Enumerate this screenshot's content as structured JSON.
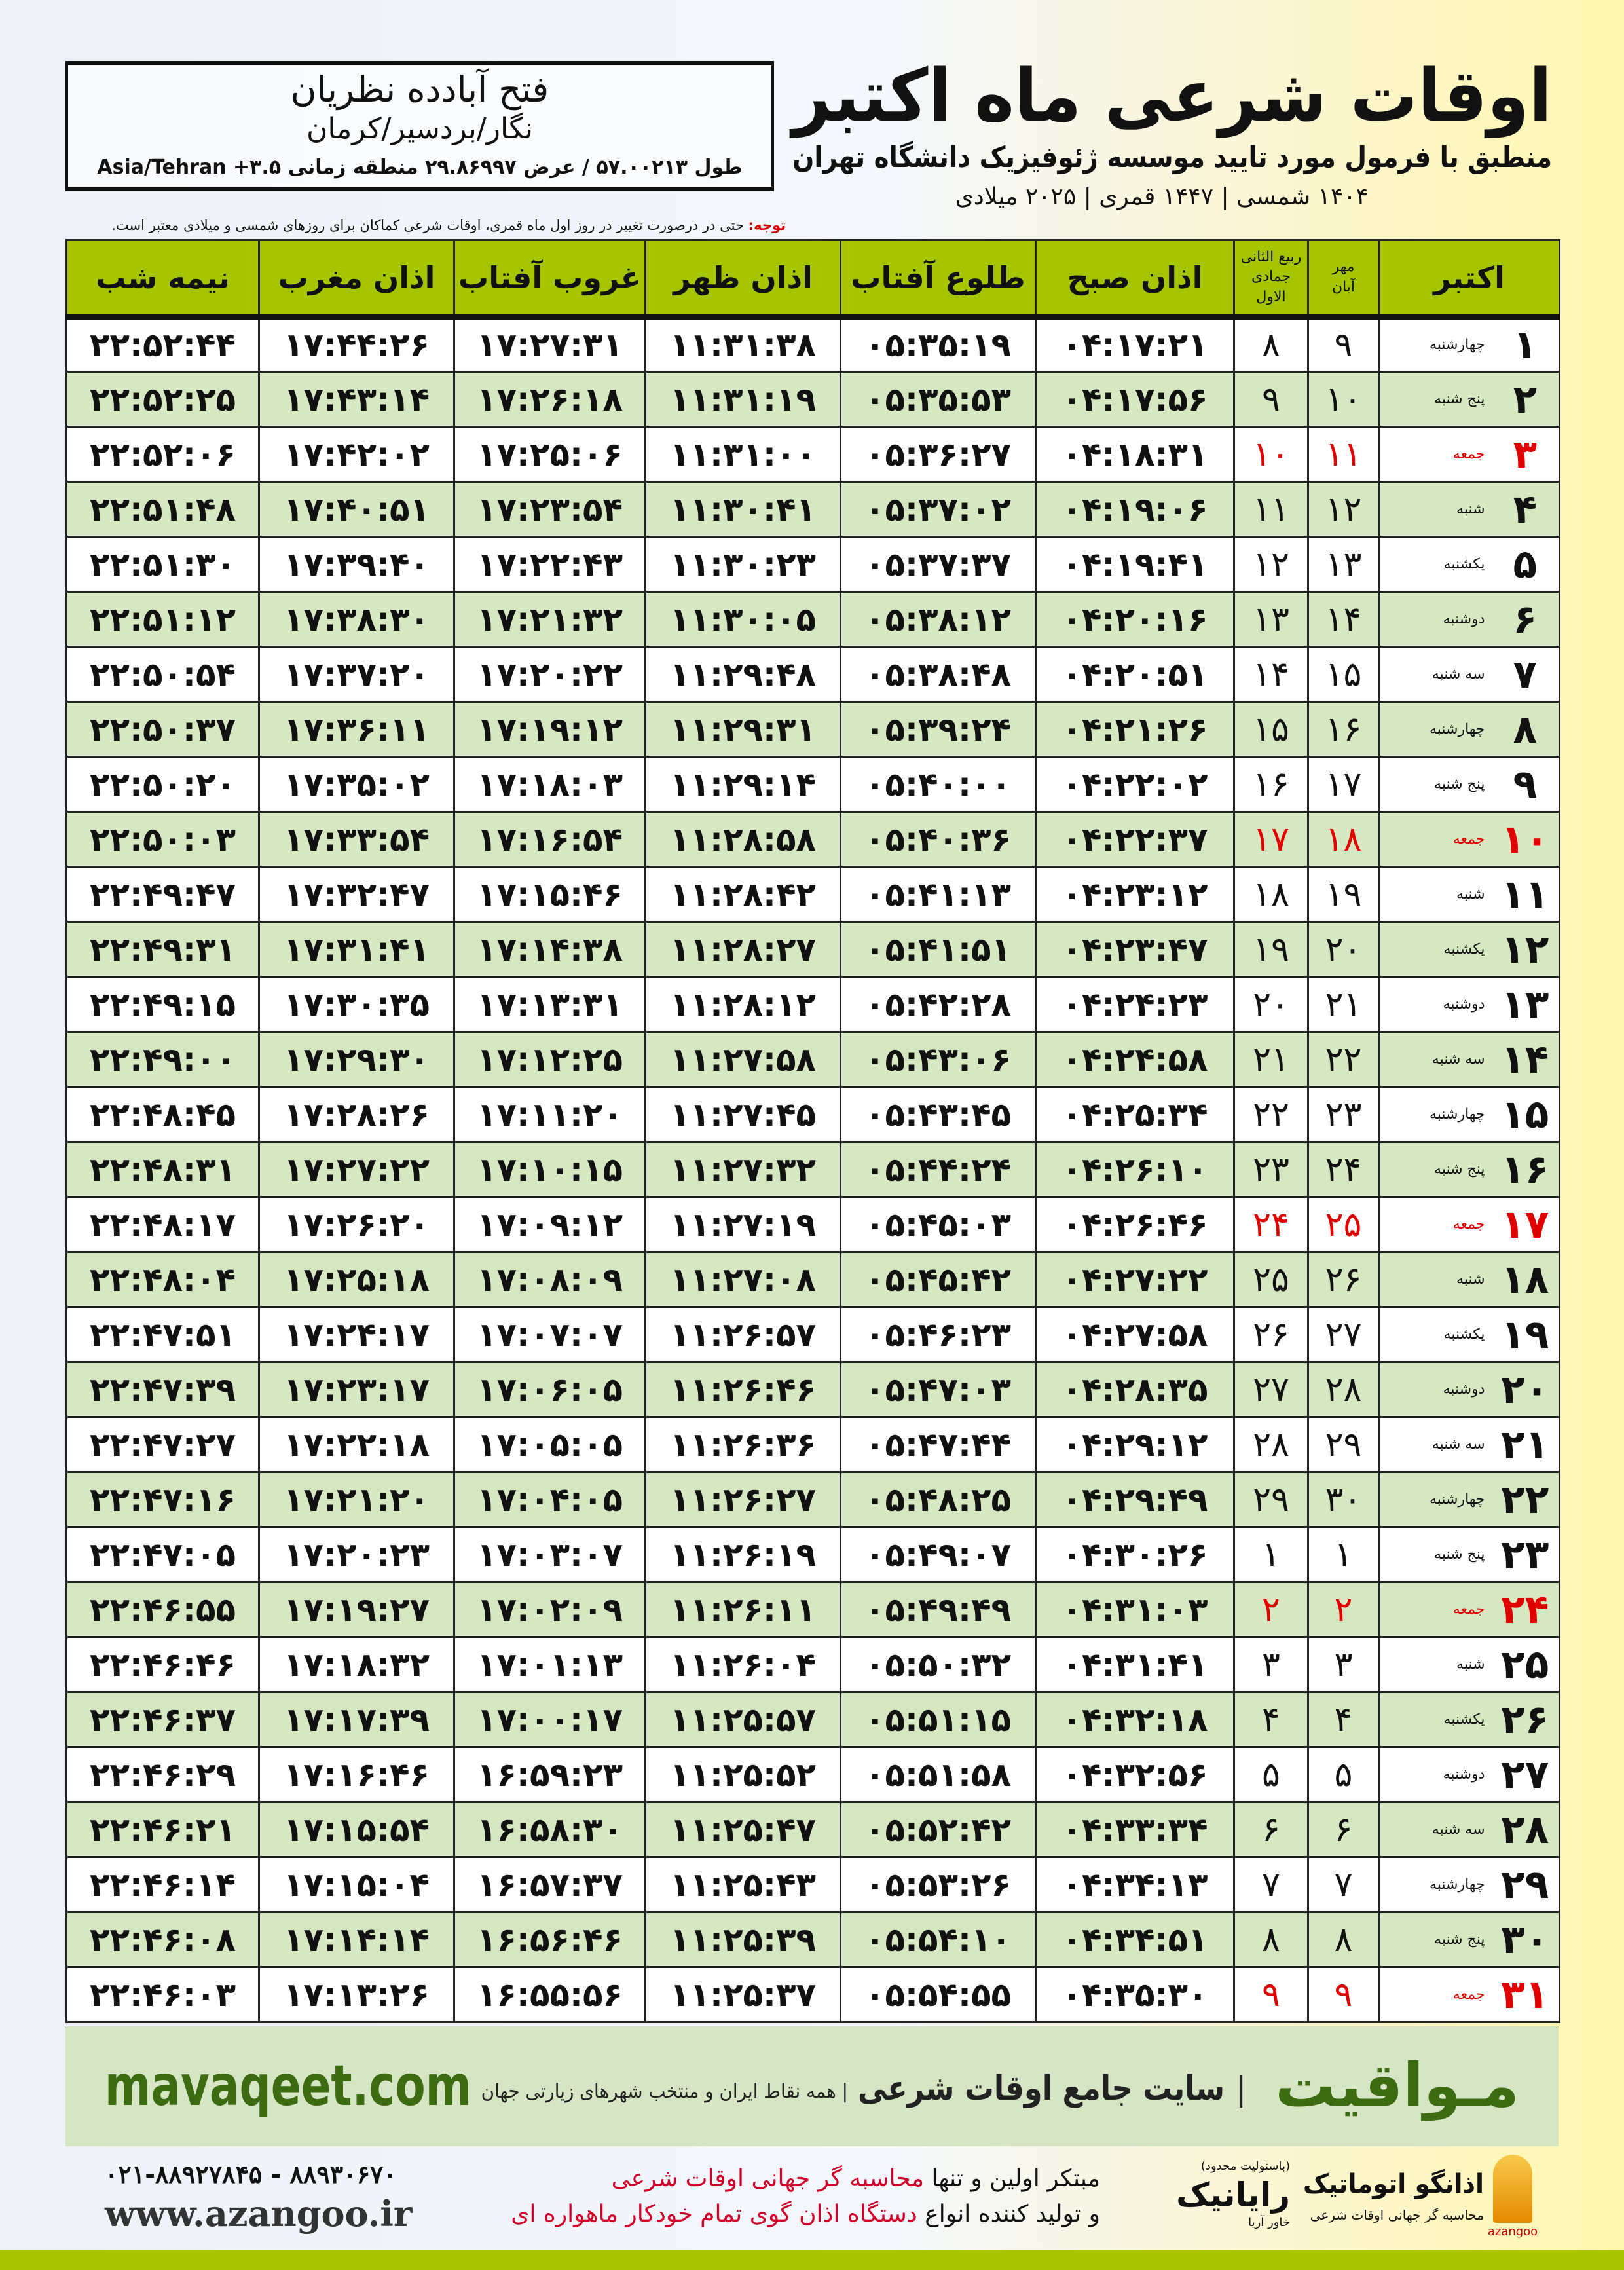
{
  "header": {
    "title": "اوقات شرعی ماه اکتبر",
    "subtitle": "منطبق با فرمول مورد تایید موسسه ژئوفیزیک دانشگاه تهران",
    "date_line": "۱۴۰۴ شمسی | ۱۴۴۷ قمری | ۲۰۲۵ میلادی"
  },
  "location": {
    "city": "فتح آبادده نظریان",
    "province": "نگار/بردسیر/کرمان",
    "coords": "طول ۵۷.۰۰۲۱۳ / عرض ۲۹.۸۶۹۹۷ منطقه زمانی ۳.۵+ Asia/Tehran"
  },
  "note": {
    "label": "توجه:",
    "text": " حتی در درصورت تغییر در روز اول ماه قمری، اوقات شرعی کماکان برای روزهای شمسی و میلادی معتبر است."
  },
  "table": {
    "headers": {
      "month": "اکتبر",
      "persian_top": "مهر",
      "persian_bottom": "آبان",
      "hijri_top": "ربیع الثانی",
      "hijri_bottom": "جمادی الاول",
      "fajr": "اذان صبح",
      "sunrise": "طلوع آفتاب",
      "dhuhr": "اذان ظهر",
      "sunset": "غروب آفتاب",
      "maghrib": "اذان مغرب",
      "midnight": "نیمه شب"
    },
    "colors": {
      "header": "#a6c400",
      "alt_row": "#d6e8c2",
      "friday": "#e00000"
    },
    "rows": [
      {
        "day": "۱",
        "weekday": "چهارشنبه",
        "persian": "۹",
        "hijri": "۸",
        "fajr": "۰۴:۱۷:۲۱",
        "sunrise": "۰۵:۳۵:۱۹",
        "dhuhr": "۱۱:۳۱:۳۸",
        "sunset": "۱۷:۲۷:۳۱",
        "maghrib": "۱۷:۴۴:۲۶",
        "midnight": "۲۲:۵۲:۴۴"
      },
      {
        "day": "۲",
        "weekday": "پنج شنبه",
        "persian": "۱۰",
        "hijri": "۹",
        "fajr": "۰۴:۱۷:۵۶",
        "sunrise": "۰۵:۳۵:۵۳",
        "dhuhr": "۱۱:۳۱:۱۹",
        "sunset": "۱۷:۲۶:۱۸",
        "maghrib": "۱۷:۴۳:۱۴",
        "midnight": "۲۲:۵۲:۲۵"
      },
      {
        "day": "۳",
        "weekday": "جمعه",
        "persian": "۱۱",
        "hijri": "۱۰",
        "fajr": "۰۴:۱۸:۳۱",
        "sunrise": "۰۵:۳۶:۲۷",
        "dhuhr": "۱۱:۳۱:۰۰",
        "sunset": "۱۷:۲۵:۰۶",
        "maghrib": "۱۷:۴۲:۰۲",
        "midnight": "۲۲:۵۲:۰۶",
        "holiday": true
      },
      {
        "day": "۴",
        "weekday": "شنبه",
        "persian": "۱۲",
        "hijri": "۱۱",
        "fajr": "۰۴:۱۹:۰۶",
        "sunrise": "۰۵:۳۷:۰۲",
        "dhuhr": "۱۱:۳۰:۴۱",
        "sunset": "۱۷:۲۳:۵۴",
        "maghrib": "۱۷:۴۰:۵۱",
        "midnight": "۲۲:۵۱:۴۸"
      },
      {
        "day": "۵",
        "weekday": "یکشنبه",
        "persian": "۱۳",
        "hijri": "۱۲",
        "fajr": "۰۴:۱۹:۴۱",
        "sunrise": "۰۵:۳۷:۳۷",
        "dhuhr": "۱۱:۳۰:۲۳",
        "sunset": "۱۷:۲۲:۴۳",
        "maghrib": "۱۷:۳۹:۴۰",
        "midnight": "۲۲:۵۱:۳۰"
      },
      {
        "day": "۶",
        "weekday": "دوشنبه",
        "persian": "۱۴",
        "hijri": "۱۳",
        "fajr": "۰۴:۲۰:۱۶",
        "sunrise": "۰۵:۳۸:۱۲",
        "dhuhr": "۱۱:۳۰:۰۵",
        "sunset": "۱۷:۲۱:۳۲",
        "maghrib": "۱۷:۳۸:۳۰",
        "midnight": "۲۲:۵۱:۱۲"
      },
      {
        "day": "۷",
        "weekday": "سه شنبه",
        "persian": "۱۵",
        "hijri": "۱۴",
        "fajr": "۰۴:۲۰:۵۱",
        "sunrise": "۰۵:۳۸:۴۸",
        "dhuhr": "۱۱:۲۹:۴۸",
        "sunset": "۱۷:۲۰:۲۲",
        "maghrib": "۱۷:۳۷:۲۰",
        "midnight": "۲۲:۵۰:۵۴"
      },
      {
        "day": "۸",
        "weekday": "چهارشنبه",
        "persian": "۱۶",
        "hijri": "۱۵",
        "fajr": "۰۴:۲۱:۲۶",
        "sunrise": "۰۵:۳۹:۲۴",
        "dhuhr": "۱۱:۲۹:۳۱",
        "sunset": "۱۷:۱۹:۱۲",
        "maghrib": "۱۷:۳۶:۱۱",
        "midnight": "۲۲:۵۰:۳۷"
      },
      {
        "day": "۹",
        "weekday": "پنج شنبه",
        "persian": "۱۷",
        "hijri": "۱۶",
        "fajr": "۰۴:۲۲:۰۲",
        "sunrise": "۰۵:۴۰:۰۰",
        "dhuhr": "۱۱:۲۹:۱۴",
        "sunset": "۱۷:۱۸:۰۳",
        "maghrib": "۱۷:۳۵:۰۲",
        "midnight": "۲۲:۵۰:۲۰"
      },
      {
        "day": "۱۰",
        "weekday": "جمعه",
        "persian": "۱۸",
        "hijri": "۱۷",
        "fajr": "۰۴:۲۲:۳۷",
        "sunrise": "۰۵:۴۰:۳۶",
        "dhuhr": "۱۱:۲۸:۵۸",
        "sunset": "۱۷:۱۶:۵۴",
        "maghrib": "۱۷:۳۳:۵۴",
        "midnight": "۲۲:۵۰:۰۳",
        "holiday": true
      },
      {
        "day": "۱۱",
        "weekday": "شنبه",
        "persian": "۱۹",
        "hijri": "۱۸",
        "fajr": "۰۴:۲۳:۱۲",
        "sunrise": "۰۵:۴۱:۱۳",
        "dhuhr": "۱۱:۲۸:۴۲",
        "sunset": "۱۷:۱۵:۴۶",
        "maghrib": "۱۷:۳۲:۴۷",
        "midnight": "۲۲:۴۹:۴۷"
      },
      {
        "day": "۱۲",
        "weekday": "یکشنبه",
        "persian": "۲۰",
        "hijri": "۱۹",
        "fajr": "۰۴:۲۳:۴۷",
        "sunrise": "۰۵:۴۱:۵۱",
        "dhuhr": "۱۱:۲۸:۲۷",
        "sunset": "۱۷:۱۴:۳۸",
        "maghrib": "۱۷:۳۱:۴۱",
        "midnight": "۲۲:۴۹:۳۱"
      },
      {
        "day": "۱۳",
        "weekday": "دوشنبه",
        "persian": "۲۱",
        "hijri": "۲۰",
        "fajr": "۰۴:۲۴:۲۳",
        "sunrise": "۰۵:۴۲:۲۸",
        "dhuhr": "۱۱:۲۸:۱۲",
        "sunset": "۱۷:۱۳:۳۱",
        "maghrib": "۱۷:۳۰:۳۵",
        "midnight": "۲۲:۴۹:۱۵"
      },
      {
        "day": "۱۴",
        "weekday": "سه شنبه",
        "persian": "۲۲",
        "hijri": "۲۱",
        "fajr": "۰۴:۲۴:۵۸",
        "sunrise": "۰۵:۴۳:۰۶",
        "dhuhr": "۱۱:۲۷:۵۸",
        "sunset": "۱۷:۱۲:۲۵",
        "maghrib": "۱۷:۲۹:۳۰",
        "midnight": "۲۲:۴۹:۰۰"
      },
      {
        "day": "۱۵",
        "weekday": "چهارشنبه",
        "persian": "۲۳",
        "hijri": "۲۲",
        "fajr": "۰۴:۲۵:۳۴",
        "sunrise": "۰۵:۴۳:۴۵",
        "dhuhr": "۱۱:۲۷:۴۵",
        "sunset": "۱۷:۱۱:۲۰",
        "maghrib": "۱۷:۲۸:۲۶",
        "midnight": "۲۲:۴۸:۴۵"
      },
      {
        "day": "۱۶",
        "weekday": "پنج شنبه",
        "persian": "۲۴",
        "hijri": "۲۳",
        "fajr": "۰۴:۲۶:۱۰",
        "sunrise": "۰۵:۴۴:۲۴",
        "dhuhr": "۱۱:۲۷:۳۲",
        "sunset": "۱۷:۱۰:۱۵",
        "maghrib": "۱۷:۲۷:۲۲",
        "midnight": "۲۲:۴۸:۳۱"
      },
      {
        "day": "۱۷",
        "weekday": "جمعه",
        "persian": "۲۵",
        "hijri": "۲۴",
        "fajr": "۰۴:۲۶:۴۶",
        "sunrise": "۰۵:۴۵:۰۳",
        "dhuhr": "۱۱:۲۷:۱۹",
        "sunset": "۱۷:۰۹:۱۲",
        "maghrib": "۱۷:۲۶:۲۰",
        "midnight": "۲۲:۴۸:۱۷",
        "holiday": true
      },
      {
        "day": "۱۸",
        "weekday": "شنبه",
        "persian": "۲۶",
        "hijri": "۲۵",
        "fajr": "۰۴:۲۷:۲۲",
        "sunrise": "۰۵:۴۵:۴۲",
        "dhuhr": "۱۱:۲۷:۰۸",
        "sunset": "۱۷:۰۸:۰۹",
        "maghrib": "۱۷:۲۵:۱۸",
        "midnight": "۲۲:۴۸:۰۴"
      },
      {
        "day": "۱۹",
        "weekday": "یکشنبه",
        "persian": "۲۷",
        "hijri": "۲۶",
        "fajr": "۰۴:۲۷:۵۸",
        "sunrise": "۰۵:۴۶:۲۳",
        "dhuhr": "۱۱:۲۶:۵۷",
        "sunset": "۱۷:۰۷:۰۷",
        "maghrib": "۱۷:۲۴:۱۷",
        "midnight": "۲۲:۴۷:۵۱"
      },
      {
        "day": "۲۰",
        "weekday": "دوشنبه",
        "persian": "۲۸",
        "hijri": "۲۷",
        "fajr": "۰۴:۲۸:۳۵",
        "sunrise": "۰۵:۴۷:۰۳",
        "dhuhr": "۱۱:۲۶:۴۶",
        "sunset": "۱۷:۰۶:۰۵",
        "maghrib": "۱۷:۲۳:۱۷",
        "midnight": "۲۲:۴۷:۳۹"
      },
      {
        "day": "۲۱",
        "weekday": "سه شنبه",
        "persian": "۲۹",
        "hijri": "۲۸",
        "fajr": "۰۴:۲۹:۱۲",
        "sunrise": "۰۵:۴۷:۴۴",
        "dhuhr": "۱۱:۲۶:۳۶",
        "sunset": "۱۷:۰۵:۰۵",
        "maghrib": "۱۷:۲۲:۱۸",
        "midnight": "۲۲:۴۷:۲۷"
      },
      {
        "day": "۲۲",
        "weekday": "چهارشنبه",
        "persian": "۳۰",
        "hijri": "۲۹",
        "fajr": "۰۴:۲۹:۴۹",
        "sunrise": "۰۵:۴۸:۲۵",
        "dhuhr": "۱۱:۲۶:۲۷",
        "sunset": "۱۷:۰۴:۰۵",
        "maghrib": "۱۷:۲۱:۲۰",
        "midnight": "۲۲:۴۷:۱۶"
      },
      {
        "day": "۲۳",
        "weekday": "پنج شنبه",
        "persian": "۱",
        "hijri": "۱",
        "fajr": "۰۴:۳۰:۲۶",
        "sunrise": "۰۵:۴۹:۰۷",
        "dhuhr": "۱۱:۲۶:۱۹",
        "sunset": "۱۷:۰۳:۰۷",
        "maghrib": "۱۷:۲۰:۲۳",
        "midnight": "۲۲:۴۷:۰۵"
      },
      {
        "day": "۲۴",
        "weekday": "جمعه",
        "persian": "۲",
        "hijri": "۲",
        "fajr": "۰۴:۳۱:۰۳",
        "sunrise": "۰۵:۴۹:۴۹",
        "dhuhr": "۱۱:۲۶:۱۱",
        "sunset": "۱۷:۰۲:۰۹",
        "maghrib": "۱۷:۱۹:۲۷",
        "midnight": "۲۲:۴۶:۵۵",
        "holiday": true
      },
      {
        "day": "۲۵",
        "weekday": "شنبه",
        "persian": "۳",
        "hijri": "۳",
        "fajr": "۰۴:۳۱:۴۱",
        "sunrise": "۰۵:۵۰:۳۲",
        "dhuhr": "۱۱:۲۶:۰۴",
        "sunset": "۱۷:۰۱:۱۳",
        "maghrib": "۱۷:۱۸:۳۲",
        "midnight": "۲۲:۴۶:۴۶"
      },
      {
        "day": "۲۶",
        "weekday": "یکشنبه",
        "persian": "۴",
        "hijri": "۴",
        "fajr": "۰۴:۳۲:۱۸",
        "sunrise": "۰۵:۵۱:۱۵",
        "dhuhr": "۱۱:۲۵:۵۷",
        "sunset": "۱۷:۰۰:۱۷",
        "maghrib": "۱۷:۱۷:۳۹",
        "midnight": "۲۲:۴۶:۳۷"
      },
      {
        "day": "۲۷",
        "weekday": "دوشنبه",
        "persian": "۵",
        "hijri": "۵",
        "fajr": "۰۴:۳۲:۵۶",
        "sunrise": "۰۵:۵۱:۵۸",
        "dhuhr": "۱۱:۲۵:۵۲",
        "sunset": "۱۶:۵۹:۲۳",
        "maghrib": "۱۷:۱۶:۴۶",
        "midnight": "۲۲:۴۶:۲۹"
      },
      {
        "day": "۲۸",
        "weekday": "سه شنبه",
        "persian": "۶",
        "hijri": "۶",
        "fajr": "۰۴:۳۳:۳۴",
        "sunrise": "۰۵:۵۲:۴۲",
        "dhuhr": "۱۱:۲۵:۴۷",
        "sunset": "۱۶:۵۸:۳۰",
        "maghrib": "۱۷:۱۵:۵۴",
        "midnight": "۲۲:۴۶:۲۱"
      },
      {
        "day": "۲۹",
        "weekday": "چهارشنبه",
        "persian": "۷",
        "hijri": "۷",
        "fajr": "۰۴:۳۴:۱۳",
        "sunrise": "۰۵:۵۳:۲۶",
        "dhuhr": "۱۱:۲۵:۴۳",
        "sunset": "۱۶:۵۷:۳۷",
        "maghrib": "۱۷:۱۵:۰۴",
        "midnight": "۲۲:۴۶:۱۴"
      },
      {
        "day": "۳۰",
        "weekday": "پنج شنبه",
        "persian": "۸",
        "hijri": "۸",
        "fajr": "۰۴:۳۴:۵۱",
        "sunrise": "۰۵:۵۴:۱۰",
        "dhuhr": "۱۱:۲۵:۳۹",
        "sunset": "۱۶:۵۶:۴۶",
        "maghrib": "۱۷:۱۴:۱۴",
        "midnight": "۲۲:۴۶:۰۸"
      },
      {
        "day": "۳۱",
        "weekday": "جمعه",
        "persian": "۹",
        "hijri": "۹",
        "fajr": "۰۴:۳۵:۳۰",
        "sunrise": "۰۵:۵۴:۵۵",
        "dhuhr": "۱۱:۲۵:۳۷",
        "sunset": "۱۶:۵۵:۵۶",
        "maghrib": "۱۷:۱۳:۲۶",
        "midnight": "۲۲:۴۶:۰۳",
        "holiday": true
      }
    ]
  },
  "banner": {
    "brand": "مـواقیت",
    "separator": "|",
    "slogan": "سایت جامع اوقات شرعی",
    "separator2": "|",
    "sub": "همه نقاط ایران و منتخب شهرهای زیارتی جهان",
    "url": "mavaqeet.com",
    "color": "#3d6b12"
  },
  "footer": {
    "logo1": {
      "name": "اذانگو اتوماتیک",
      "tag": "محاسبه گر جهانی اوقات شرعی",
      "latin": "azangoo"
    },
    "logo2": {
      "note": "(باسئولیت محدود)",
      "name": "رایانیک",
      "sub": "خاور آریا"
    },
    "promo": {
      "l1a": "مبتکر اولین و تنها ",
      "l1b": "محاسبه گر جهانی اوقات شرعی",
      "l2a": "و تولید کننده انواع ",
      "l2b": "دستگاه اذان گوی تمام خودکار ماهواره ای"
    },
    "phone": "۰۲۱-۸۸۹۲۷۸۴۵ - ۸۸۹۳۰۶۷۰",
    "website": "www.azangoo.ir"
  }
}
